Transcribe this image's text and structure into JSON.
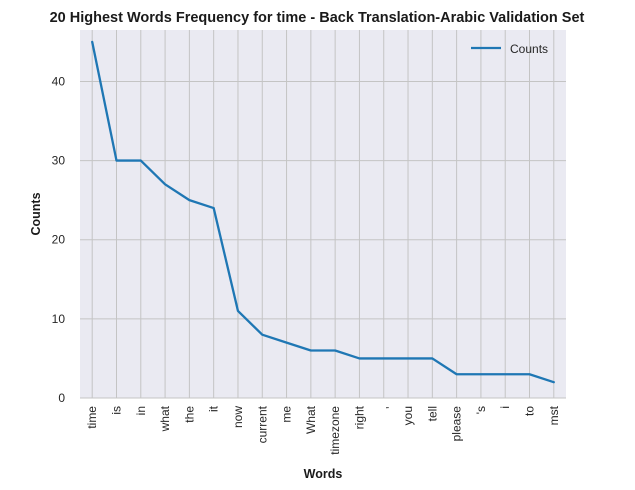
{
  "chart_data": {
    "type": "line",
    "title": "20 Highest Words Frequency for time - Back Translation-Arabic Validation Set",
    "xlabel": "Words",
    "ylabel": "Counts",
    "categories": [
      "time",
      "is",
      "in",
      "what",
      "the",
      "it",
      "now",
      "current",
      "me",
      "What",
      "timezone",
      "right",
      ",",
      "you",
      "tell",
      "please",
      "'s",
      "i",
      "to",
      "mst"
    ],
    "series": [
      {
        "name": "Counts",
        "values": [
          45,
          30,
          30,
          27,
          25,
          24,
          11,
          8,
          7,
          6,
          6,
          5,
          5,
          5,
          5,
          3,
          3,
          3,
          3,
          2
        ]
      }
    ],
    "ylim": [
      0,
      46.5
    ],
    "yticks": [
      0,
      10,
      20,
      30,
      40
    ],
    "grid": true,
    "legend_position": "top-right",
    "colors": {
      "line": "#1f77b4",
      "background": "#eaeaf2",
      "grid": "#c4c4c4"
    }
  }
}
